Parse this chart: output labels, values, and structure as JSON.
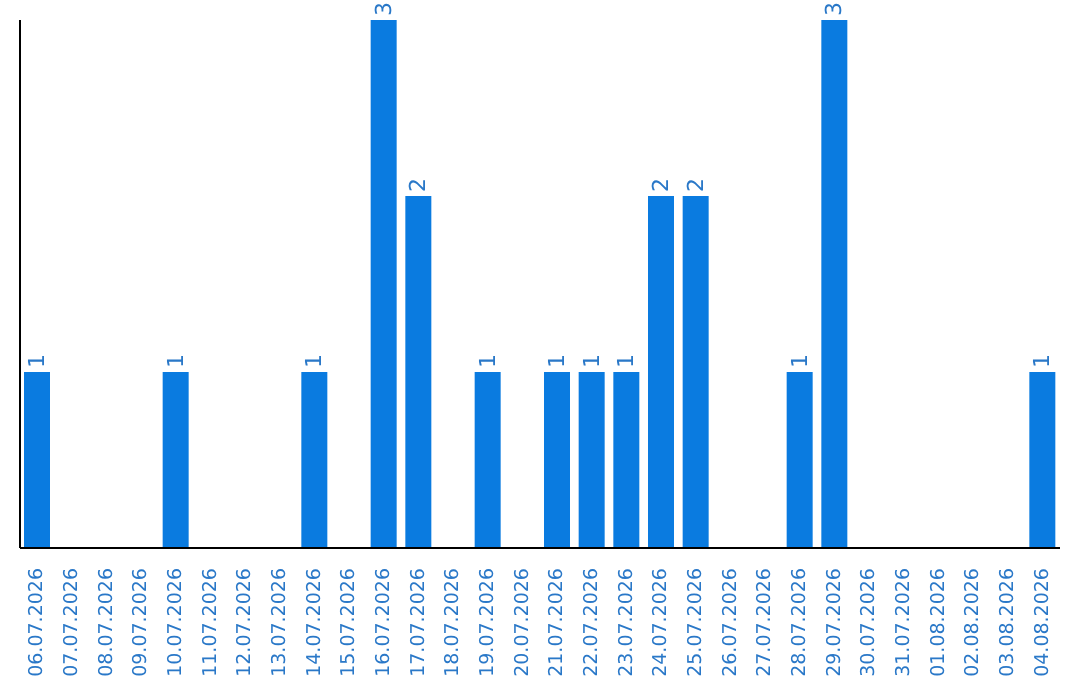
{
  "chart_data": {
    "type": "bar",
    "categories": [
      "06.07.2026",
      "07.07.2026",
      "08.07.2026",
      "09.07.2026",
      "10.07.2026",
      "11.07.2026",
      "12.07.2026",
      "13.07.2026",
      "14.07.2026",
      "15.07.2026",
      "16.07.2026",
      "17.07.2026",
      "18.07.2026",
      "19.07.2026",
      "20.07.2026",
      "21.07.2026",
      "22.07.2026",
      "23.07.2026",
      "24.07.2026",
      "25.07.2026",
      "26.07.2026",
      "27.07.2026",
      "28.07.2026",
      "29.07.2026",
      "30.07.2026",
      "31.07.2026",
      "01.08.2026",
      "02.08.2026",
      "03.08.2026",
      "04.08.2026"
    ],
    "values": [
      1,
      0,
      0,
      0,
      1,
      0,
      0,
      0,
      1,
      0,
      3,
      2,
      0,
      1,
      0,
      1,
      1,
      1,
      2,
      2,
      0,
      0,
      1,
      3,
      0,
      0,
      0,
      0,
      0,
      1
    ],
    "value_labels": [
      "1",
      null,
      null,
      null,
      "1",
      null,
      null,
      null,
      "1",
      null,
      "3",
      "2",
      null,
      "1",
      null,
      "1",
      "1",
      "1",
      "2",
      "2",
      null,
      null,
      "1",
      "3",
      null,
      null,
      null,
      null,
      null,
      "1"
    ],
    "color": "#0a7be0",
    "ylim": [
      0,
      3
    ],
    "tick_labels": "x",
    "grid": false
  }
}
